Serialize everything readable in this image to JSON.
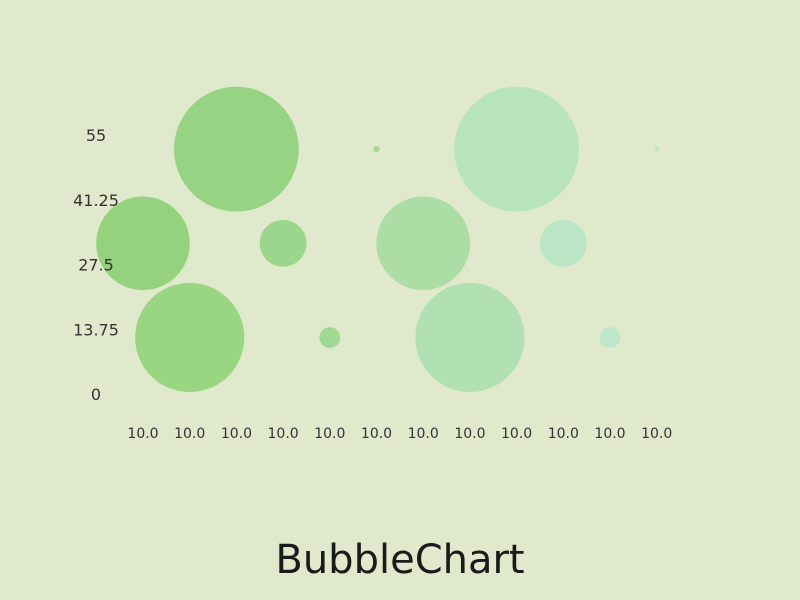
{
  "chart_data": {
    "type": "bubble",
    "title": "BubbleChart",
    "xlabel": "",
    "ylabel": "",
    "ylim": [
      0,
      55
    ],
    "y_ticks": [
      "55",
      "41.25",
      "27.5",
      "13.75",
      "0"
    ],
    "y_tick_values": [
      55,
      41.25,
      27.5,
      13.75,
      0
    ],
    "categories": [
      "10.0",
      "10.0",
      "10.0",
      "10.0",
      "10.0",
      "10.0",
      "10.0",
      "10.0",
      "10.0",
      "10.0",
      "10.0",
      "10.0"
    ],
    "grid": false,
    "legend": "none",
    "points": [
      {
        "category_index": 0,
        "y": 32,
        "size": 9,
        "color": "#8ecf77"
      },
      {
        "category_index": 1,
        "y": 12,
        "size": 10.5,
        "color": "#93d47c"
      },
      {
        "category_index": 2,
        "y": 52,
        "size": 12,
        "color": "#8fd07c"
      },
      {
        "category_index": 3,
        "y": 32,
        "size": 4.5,
        "color": "#96d489"
      },
      {
        "category_index": 4,
        "y": 12,
        "size": 2,
        "color": "#99d78e"
      },
      {
        "category_index": 5,
        "y": 52,
        "size": 0.6,
        "color": "#9cd792"
      },
      {
        "category_index": 6,
        "y": 32,
        "size": 9,
        "color": "#a6dba2"
      },
      {
        "category_index": 7,
        "y": 12,
        "size": 10.5,
        "color": "#ade0b0"
      },
      {
        "category_index": 8,
        "y": 52,
        "size": 12,
        "color": "#b3e3bc"
      },
      {
        "category_index": 9,
        "y": 32,
        "size": 4.5,
        "color": "#b7e5c4"
      },
      {
        "category_index": 10,
        "y": 12,
        "size": 2,
        "color": "#bae6c8"
      },
      {
        "category_index": 11,
        "y": 52,
        "size": 0.5,
        "color": "#bde8cc"
      }
    ]
  }
}
